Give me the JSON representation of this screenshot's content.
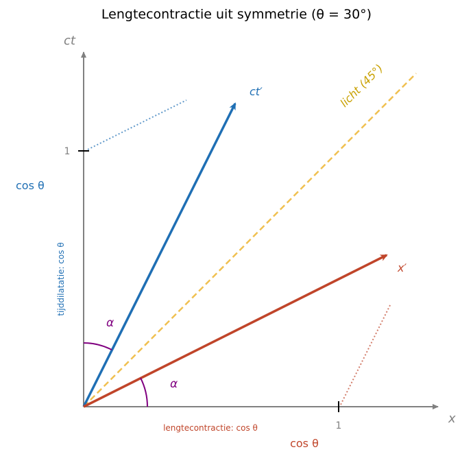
{
  "title": "Lengtecontractie uit symmetrie (θ = 30°)",
  "axes": {
    "x_label": "x",
    "y_label": "ct",
    "x_tick": "1",
    "y_tick": "1"
  },
  "vectors": {
    "ct_prime_label": "ct′",
    "x_prime_label": "x′",
    "light_label": "licht (45°)"
  },
  "angles": {
    "alpha_upper": "α",
    "alpha_lower": "α"
  },
  "annotations": {
    "time_dilation": "tijddilatatie: cos θ",
    "length_contraction": "lengtecontractie: cos θ",
    "cos_left": "cos θ",
    "cos_bottom": "cos θ"
  },
  "colors": {
    "ct_prime": "#1f6fb4",
    "x_prime": "#c0452a",
    "light": "#f0c050",
    "alpha": "#800080",
    "axis": "#808080"
  }
}
